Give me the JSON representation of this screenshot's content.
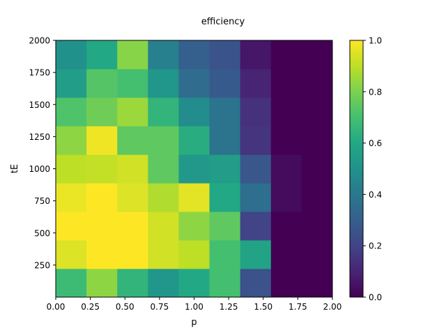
{
  "chart_data": {
    "type": "heatmap",
    "title": "efficiency",
    "xlabel": "p",
    "ylabel": "tE",
    "xlim": [
      0,
      2
    ],
    "ylim": [
      0,
      2000
    ],
    "x_edges": [
      0,
      0.2222,
      0.4444,
      0.6667,
      0.8889,
      1.1111,
      1.3333,
      1.5556,
      1.7778,
      2.0
    ],
    "y_edges": [
      0,
      222.2,
      444.4,
      666.7,
      888.9,
      1111.1,
      1333.3,
      1555.6,
      1777.8,
      2000
    ],
    "x_ticks": [
      "0.00",
      "0.25",
      "0.50",
      "0.75",
      "1.00",
      "1.25",
      "1.50",
      "1.75",
      "2.00"
    ],
    "x_tick_values": [
      0,
      0.25,
      0.5,
      0.75,
      1.0,
      1.25,
      1.5,
      1.75,
      2.0
    ],
    "y_ticks": [
      "250",
      "500",
      "750",
      "1000",
      "1250",
      "1500",
      "1750",
      "2000"
    ],
    "y_tick_values": [
      250,
      500,
      750,
      1000,
      1250,
      1500,
      1750,
      2000
    ],
    "colormap": "viridis",
    "clim": [
      0,
      1
    ],
    "colorbar_ticks": [
      "0.0",
      "0.2",
      "0.4",
      "0.6",
      "0.8",
      "1.0"
    ],
    "colorbar_tick_values": [
      0,
      0.2,
      0.4,
      0.6,
      0.8,
      1.0
    ],
    "values": [
      [
        0.68,
        0.83,
        0.65,
        0.52,
        0.6,
        0.7,
        0.25,
        0.0,
        0.0
      ],
      [
        0.95,
        1.0,
        1.0,
        0.93,
        0.9,
        0.7,
        0.58,
        0.0,
        0.0
      ],
      [
        1.0,
        1.0,
        1.0,
        0.93,
        0.83,
        0.75,
        0.2,
        0.0,
        0.0
      ],
      [
        0.97,
        1.0,
        0.95,
        0.88,
        0.96,
        0.6,
        0.36,
        0.03,
        0.0
      ],
      [
        0.9,
        0.91,
        0.93,
        0.75,
        0.53,
        0.55,
        0.27,
        0.03,
        0.0
      ],
      [
        0.83,
        0.98,
        0.75,
        0.75,
        0.62,
        0.38,
        0.15,
        0.0,
        0.0
      ],
      [
        0.72,
        0.78,
        0.85,
        0.65,
        0.48,
        0.38,
        0.14,
        0.0,
        0.0
      ],
      [
        0.55,
        0.73,
        0.7,
        0.52,
        0.35,
        0.28,
        0.1,
        0.0,
        0.0
      ],
      [
        0.5,
        0.6,
        0.82,
        0.43,
        0.3,
        0.26,
        0.06,
        0.0,
        0.0
      ]
    ]
  }
}
